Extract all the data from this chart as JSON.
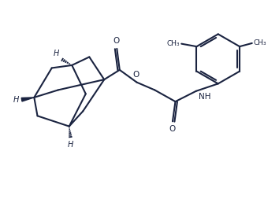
{
  "bg_color": "#ffffff",
  "line_color": "#1a2340",
  "line_width": 1.5,
  "fig_width": 3.54,
  "fig_height": 2.67,
  "dpi": 100,
  "xlim": [
    0,
    10
  ],
  "ylim": [
    0,
    7.55
  ]
}
